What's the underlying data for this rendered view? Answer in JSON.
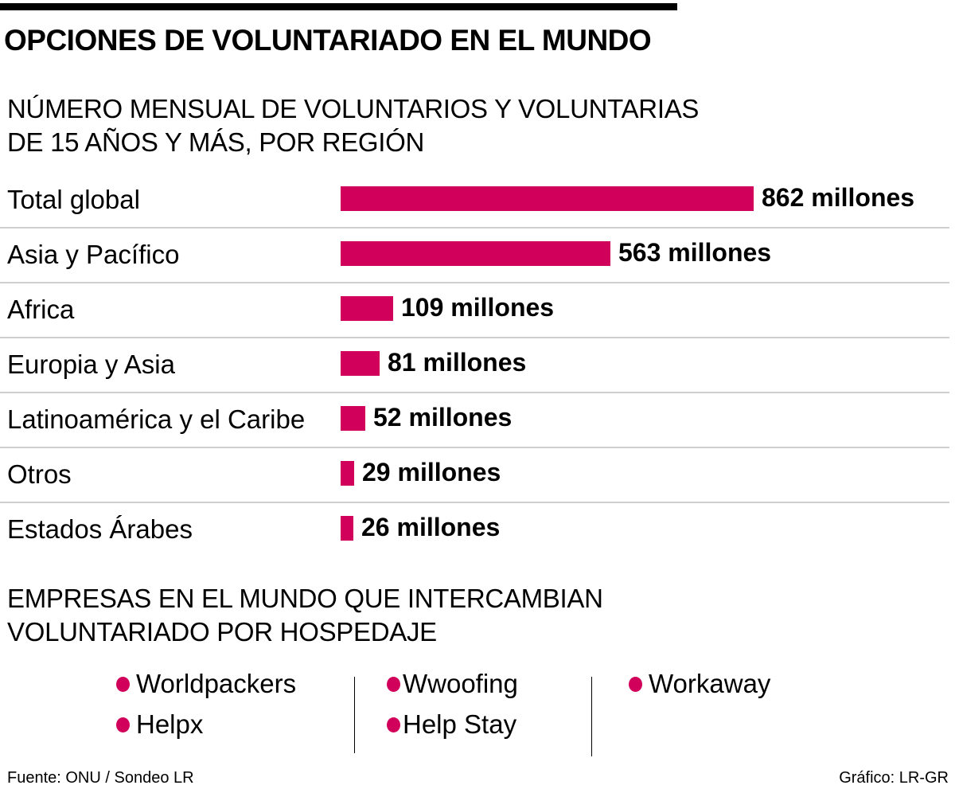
{
  "title": "OPCIONES DE VOLUNTARIADO EN EL MUNDO",
  "colors": {
    "bar": "#d1005a",
    "dot": "#d1005a"
  },
  "chart_data": {
    "type": "bar",
    "orientation": "horizontal",
    "title": "NÚMERO MENSUAL DE VOLUNTARIOS Y VOLUNTARIAS DE 15 AÑOS Y MÁS, POR REGIÓN",
    "title_lines": [
      "NÚMERO MENSUAL DE VOLUNTARIOS Y VOLUNTARIAS",
      "DE 15 AÑOS Y MÁS, POR REGIÓN"
    ],
    "categories": [
      "Total global",
      "Asia y Pacífico",
      "Africa",
      "Europia y Asia",
      "Latinoamérica y el Caribe",
      "Otros",
      "Estados Árabes"
    ],
    "values": [
      862,
      563,
      109,
      81,
      52,
      29,
      26
    ],
    "data_labels": [
      "862 millones",
      "563 millones",
      "109 millones",
      "81 millones",
      "52 millones",
      "29 millones",
      "26 millones"
    ],
    "unit": "millones",
    "grid": false
  },
  "companies": {
    "title_lines": [
      "EMPRESAS EN EL MUNDO QUE INTERCAMBIAN",
      "VOLUNTARIADO POR HOSPEDAJE"
    ],
    "items": [
      "Worldpackers",
      "Helpx",
      "Wwoofing",
      "Help Stay",
      "Workaway"
    ]
  },
  "footer": {
    "source": "Fuente: ONU / Sondeo LR",
    "credit": "Gráfico: LR-GR"
  }
}
